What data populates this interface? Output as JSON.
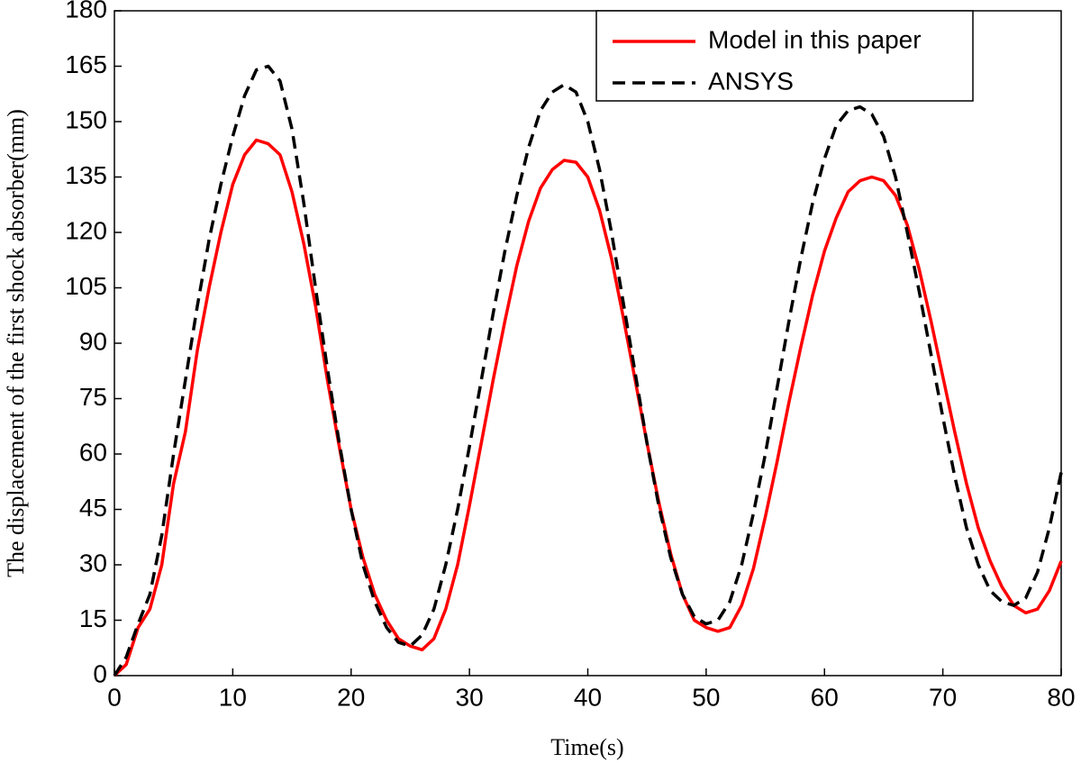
{
  "chart_data": {
    "type": "line",
    "xlabel": "Time(s)",
    "ylabel": "The displacement of the first shock absorber(mm)",
    "x": [
      0,
      1,
      2,
      3,
      4,
      5,
      6,
      7,
      8,
      9,
      10,
      11,
      12,
      13,
      14,
      15,
      16,
      17,
      18,
      19,
      20,
      21,
      22,
      23,
      24,
      25,
      26,
      27,
      28,
      29,
      30,
      31,
      32,
      33,
      34,
      35,
      36,
      37,
      38,
      39,
      40,
      41,
      42,
      43,
      44,
      45,
      46,
      47,
      48,
      49,
      50,
      51,
      52,
      53,
      54,
      55,
      56,
      57,
      58,
      59,
      60,
      61,
      62,
      63,
      64,
      65,
      66,
      67,
      68,
      69,
      70,
      71,
      72,
      73,
      74,
      75,
      76,
      77,
      78,
      79,
      80
    ],
    "series": [
      {
        "name": "Model in this paper",
        "color": "#ff0000",
        "linestyle": "solid",
        "values": [
          0,
          3,
          13,
          18,
          30,
          52,
          66,
          88,
          105,
          120,
          133,
          141,
          145,
          144,
          141,
          131,
          117,
          100,
          80,
          62,
          45,
          32,
          22,
          15,
          10,
          8,
          7,
          10,
          18,
          30,
          46,
          63,
          80,
          96,
          111,
          123,
          132,
          137,
          139.5,
          139,
          135,
          126,
          113,
          97,
          80,
          63,
          47,
          33,
          22,
          15,
          13,
          12,
          13,
          19,
          29,
          43,
          58,
          74,
          89,
          103,
          115,
          124,
          131,
          134,
          135,
          134,
          130,
          122,
          110,
          96,
          81,
          66,
          52,
          40,
          31,
          24,
          19,
          17,
          18,
          23,
          31
        ]
      },
      {
        "name": "ANSYS",
        "color": "#000000",
        "linestyle": "dashed",
        "values": [
          0,
          5,
          14,
          22,
          38,
          60,
          80,
          100,
          118,
          133,
          146,
          157,
          164,
          165,
          161,
          148,
          128,
          105,
          83,
          63,
          45,
          30,
          20,
          13,
          9,
          8,
          11,
          18,
          30,
          45,
          62,
          80,
          98,
          115,
          130,
          143,
          153,
          158,
          160,
          158,
          150,
          137,
          120,
          101,
          82,
          63,
          46,
          32,
          22,
          16,
          14,
          15,
          20,
          30,
          44,
          60,
          78,
          96,
          113,
          128,
          140,
          149,
          153,
          154,
          152,
          146,
          135,
          120,
          104,
          87,
          70,
          54,
          40,
          30,
          23,
          20,
          19,
          21,
          28,
          40,
          55
        ]
      }
    ],
    "xlim": [
      0,
      80
    ],
    "xticks": [
      0,
      10,
      20,
      30,
      40,
      50,
      60,
      70,
      80
    ],
    "ylim": [
      0,
      180
    ],
    "yticks": [
      0,
      15,
      30,
      45,
      60,
      75,
      90,
      105,
      120,
      135,
      150,
      165,
      180
    ],
    "grid": false,
    "legend": "upper right"
  }
}
